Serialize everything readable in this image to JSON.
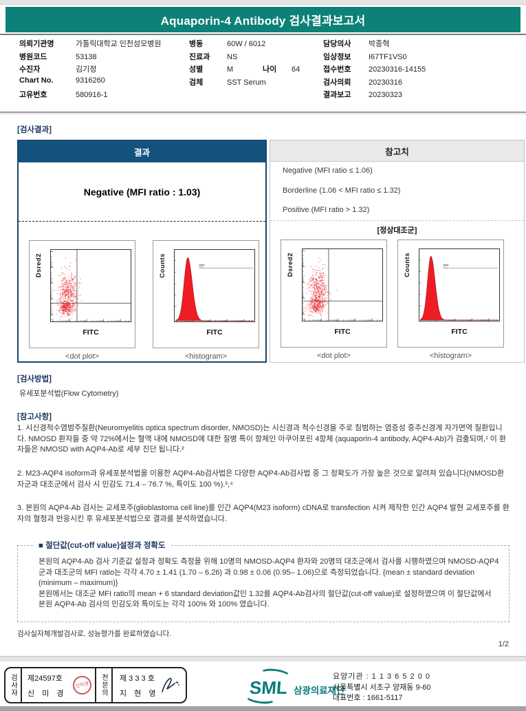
{
  "banner": {
    "title": "Aquaporin-4 Antibody 검사결과보고서"
  },
  "patient": {
    "left": [
      {
        "label": "의뢰기관명",
        "value": "가톨릭대학교 인천성모병원"
      },
      {
        "label": "병원코드",
        "value": "53138"
      },
      {
        "label": "수진자",
        "value": "김기정"
      },
      {
        "label": "Chart No.",
        "value": "9316260"
      },
      {
        "label": "고유번호",
        "value": "580916-1"
      }
    ],
    "middle": [
      {
        "label": "병동",
        "value": "60W / 6012"
      },
      {
        "label": "진료과",
        "value": "NS"
      },
      {
        "label": "성별",
        "value": "M",
        "label2": "나이",
        "value2": "64"
      },
      {
        "label": "검체",
        "value": "SST Serum"
      }
    ],
    "right": [
      {
        "label": "담당의사",
        "value": "박종혁"
      },
      {
        "label": "임상정보",
        "value": "I67TF1VS0"
      },
      {
        "label": "접수번호",
        "value": "20230316-14155"
      },
      {
        "label": "검사의뢰",
        "value": "20230316"
      },
      {
        "label": "결과보고",
        "value": "20230323"
      }
    ]
  },
  "result": {
    "section_title": "[검사결과]",
    "result_header": "결과",
    "reference_header": "참고치",
    "result_value": "Negative (MFI ratio : 1.03)",
    "reference_lines": [
      "Negative (MFI ratio ≤ 1.06)",
      "Borderline (1.06 < MFI ratio ≤ 1.32)",
      "Positive (MFI ratio > 1.32)"
    ],
    "normal_control_label": "[정상대조군]",
    "dot_plot_caption": "<dot plot>",
    "histogram_caption": "<histogram>",
    "dot_y_label": "Dsred2",
    "hist_y_label": "Counts",
    "x_label": "FITC"
  },
  "method": {
    "title": "[검사방법]",
    "text": "유세포분석법(Flow Cytometry)"
  },
  "notes": {
    "title": "[참고사항]",
    "items": [
      "1. 시신경척수염범주질환(Neuromyelitis optica spectrum disorder, NMOSD)는 시신경과 척수신경을 주로 침범하는 염증성 중추신경계 자가면역 질환입니다. NMOSD 환자들 중 약 72%에서는 혈액 내에 NMOSD에 대한 질병 특이 항체인 아쿠아포린 4항체 (aquaporin-4 antibody, AQP4-Ab)가 검출되며,¹ 이 환자들은 NMOSD with AQP4-Ab로 세부 진단 됩니다.²",
      "2. M23-AQP4 isoform과 유세포분석법을 이용한 AQP4-Ab검사법은 다양한 AQP4-Ab검사법 중 그 정확도가 가장 높은 것으로 알려져 있습니다(NMOSD환자군과 대조군에서 검사 시 민감도 71.4 – 76.7 %, 특이도 100 %).³,⁴",
      "3. 본원의 AQP4-Ab 검사는 교세포주(glioblastoma cell line)를 인간 AQP4(M23 isoform) cDNA로 transfection 시켜 제작한 인간 AQP4 발현 교세포주를 환자의 혈청과 반응시킨 후 유세포분석법으로 결과를 분석하였습니다."
    ]
  },
  "cutoff": {
    "title": "■ 절단값(cut-off value)설정과 정확도",
    "paragraphs": [
      "본원의 AQP4-Ab 검사 기준값 설정과 정확도 측정을 위해 10명의 NMOSD-AQP4 환자와 20명의 대조군에서 검사를 시행하였으며  NMOSD-AQP4군과  대조군의 MFI ratio는 각각 4.70 ± 1.41 (1.70 – 6.26) 과 0.98 ± 0.06 (0.95– 1.06)으로 측정되었습니다. {mean ± standard deviation (minimum – maximum)}",
      "본원에서는 대조군 MFI ratio의 mean + 6 standard deviation값인 1.32를 AQP4-Ab검사의 절단값(cut-off value)로 설정하였으며 이 절단값에서 본원 AQP4-Ab 검사의 민감도와 특이도는 각각 100% 와 100% 였습니다."
    ]
  },
  "footer_note": "검사실자체개발검사로, 성능평가를 완료하였습니다.",
  "page_number": "1/2",
  "stamp_box": {
    "examiner_label": "검사자",
    "examiner_no": "제24597호",
    "examiner_name": "신 미 경",
    "seal_text": "신미경",
    "specialist_label": "전문의",
    "specialist_no": "제 3 3 3 호",
    "specialist_name": "지 현 영"
  },
  "org": {
    "logo_text": "SML",
    "org_name": "삼광의료재단",
    "line1": "요양기관 : 1 1 3 6 5 2 0 0",
    "line2": "서울특별시 서초구 양재동 9-60",
    "line3": "대표번호 : 1661-5117"
  },
  "colors": {
    "banner_teal": "#0d8177",
    "header_blue": "#15527e",
    "section_navy": "#1f3864",
    "plot_red": "#ee1c25",
    "seal_red": "#d04545",
    "logo_teal": "#0a7d79"
  },
  "chart_data": [
    {
      "id": "patient-dot-plot",
      "type": "scatter",
      "xlabel": "FITC",
      "ylabel": "Dsred2",
      "axes_scale": "log",
      "vline": 0.33,
      "hline": 0.74,
      "seed": 11,
      "clusters": [
        {
          "cx": 0.22,
          "cy": 0.58,
          "sx": 0.06,
          "sy": 0.13,
          "n": 420
        },
        {
          "cx": 0.2,
          "cy": 0.8,
          "sx": 0.045,
          "sy": 0.055,
          "n": 320
        }
      ],
      "annotation": "negative population in lower-left quadrant"
    },
    {
      "id": "patient-histogram",
      "type": "area",
      "xlabel": "FITC",
      "ylabel": "Counts",
      "axes_scale": "log",
      "peak": 0.17,
      "sigma_l": 0.045,
      "sigma_r": 0.055,
      "height": 0.94,
      "gate_y": 0.26,
      "gate_x0": 0.31,
      "annotation": "single negative peak with M1 gate line"
    },
    {
      "id": "control-dot-plot",
      "type": "scatter",
      "xlabel": "FITC",
      "ylabel": "Dsred2",
      "axes_scale": "log",
      "vline": 0.33,
      "hline": 0.72,
      "seed": 29,
      "clusters": [
        {
          "cx": 0.21,
          "cy": 0.55,
          "sx": 0.06,
          "sy": 0.14,
          "n": 420
        },
        {
          "cx": 0.18,
          "cy": 0.78,
          "sx": 0.05,
          "sy": 0.06,
          "n": 300
        }
      ],
      "annotation": "normal control negative population"
    },
    {
      "id": "control-histogram",
      "type": "area",
      "xlabel": "FITC",
      "ylabel": "Counts",
      "axes_scale": "log",
      "peak": 0.15,
      "sigma_l": 0.042,
      "sigma_r": 0.052,
      "height": 0.95,
      "gate_y": 0.27,
      "gate_x0": 0.3,
      "annotation": "normal control single peak with gate line"
    }
  ]
}
